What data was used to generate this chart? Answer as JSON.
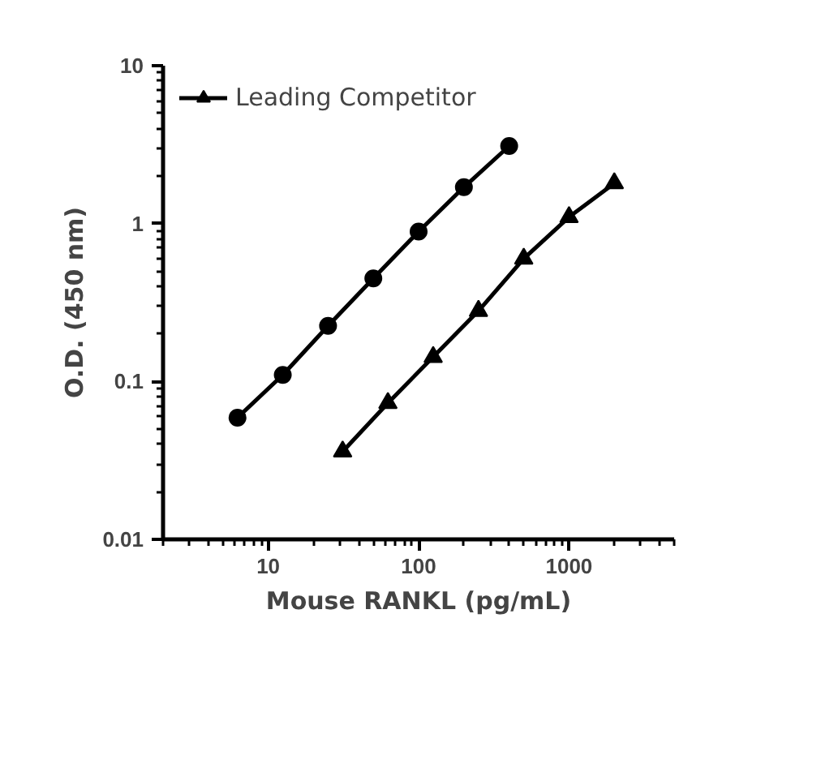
{
  "chart_data": {
    "type": "line",
    "xlabel": "Mouse RANKL (pg/mL)",
    "ylabel": "O.D. (450 nm)",
    "log": "xy",
    "xlim": [
      2,
      5000
    ],
    "xticks": [
      10,
      100,
      1000
    ],
    "ylim": [
      0.01,
      10
    ],
    "yticks": [
      0.01,
      0.1,
      1,
      10
    ],
    "grid": false,
    "legend": "top left",
    "series": [
      {
        "color": "#000000",
        "marker": "circle",
        "x": [
          6.25,
          12.5,
          25,
          50,
          100,
          200,
          400
        ],
        "values": [
          0.059,
          0.11,
          0.225,
          0.45,
          0.89,
          1.7,
          3.1
        ]
      },
      {
        "name": "Leading Competitor",
        "color": "#000000",
        "marker": "triangle",
        "x": [
          31.25,
          62.5,
          125,
          250,
          500,
          1000,
          2000
        ],
        "values": [
          0.036,
          0.073,
          0.143,
          0.28,
          0.6,
          1.1,
          1.8
        ]
      }
    ]
  }
}
